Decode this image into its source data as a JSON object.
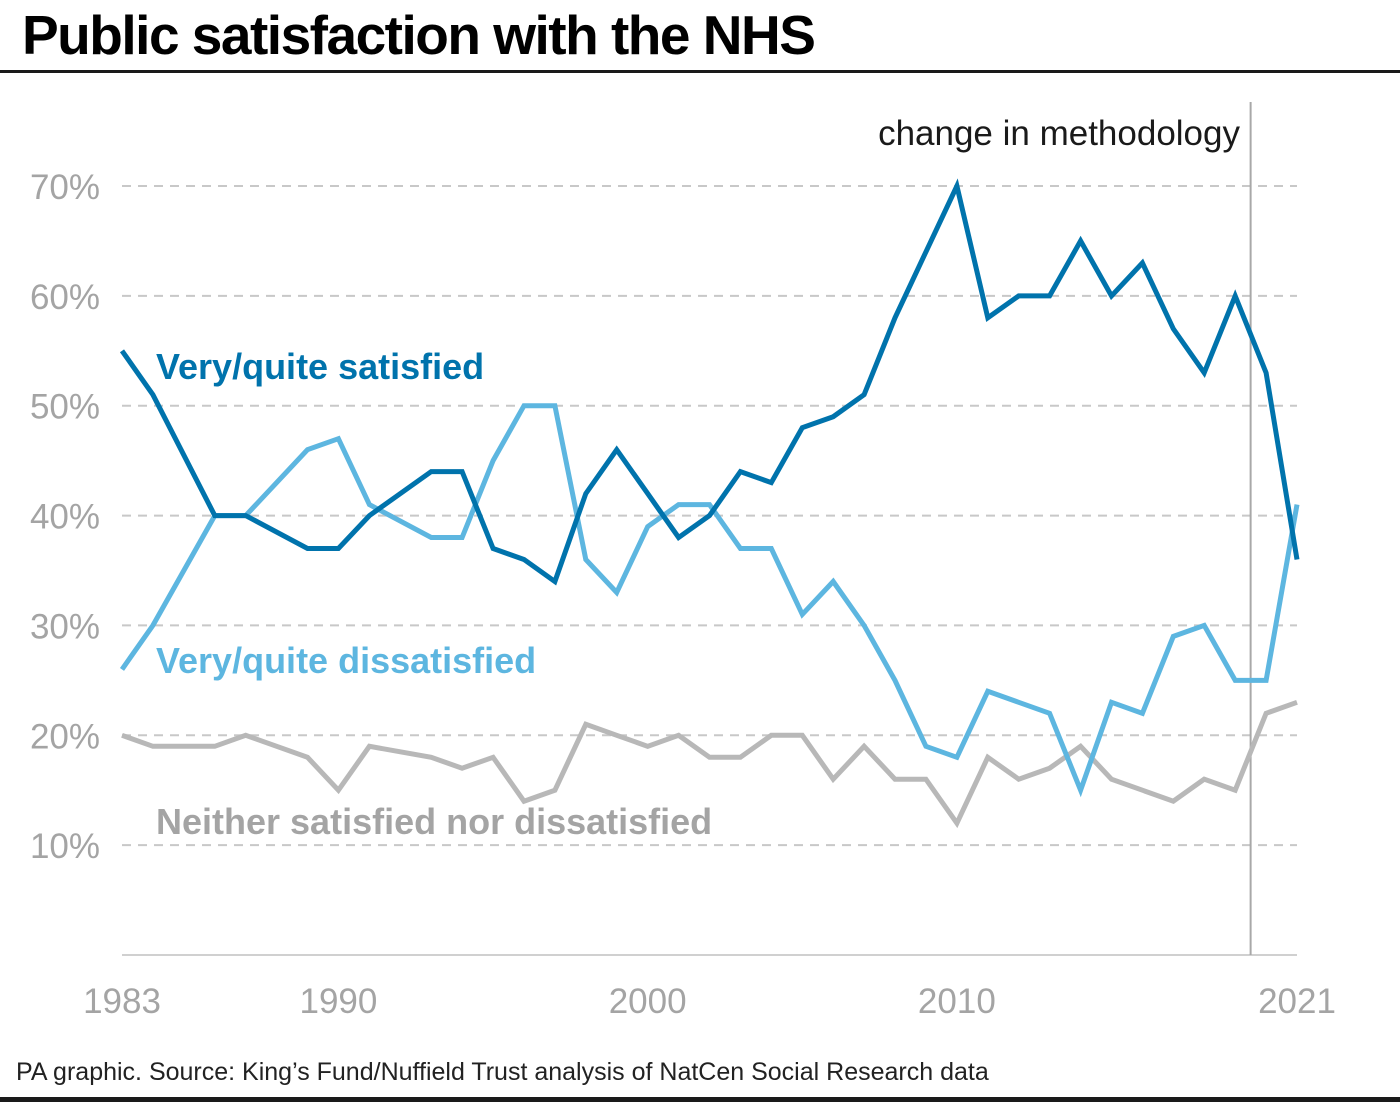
{
  "title": "Public satisfaction with the NHS",
  "source": "PA graphic. Source: King’s Fund/Nuffield Trust analysis of NatCen Social Research data",
  "chart_data": {
    "type": "line",
    "title": "Public satisfaction with the NHS",
    "xlabel": "",
    "ylabel": "",
    "xlim": [
      1983,
      2021
    ],
    "ylim": [
      0,
      70
    ],
    "grid": true,
    "x_tick_labels": [
      "1983",
      "1990",
      "2000",
      "2010",
      "2021"
    ],
    "x_ticks": [
      1983,
      1990,
      2000,
      2010,
      2021
    ],
    "y_ticks": [
      10,
      20,
      30,
      40,
      50,
      60,
      70
    ],
    "y_tick_labels": [
      "10%",
      "20%",
      "30%",
      "40%",
      "50%",
      "60%",
      "70%"
    ],
    "annotation": {
      "text": "change in methodology",
      "x": 2019.5
    },
    "series": [
      {
        "name": "Very/quite satisfied",
        "color": "#0073ac",
        "x": [
          1983,
          1984,
          1986,
          1987,
          1989,
          1990,
          1991,
          1993,
          1994,
          1995,
          1996,
          1997,
          1998,
          1999,
          2000,
          2001,
          2002,
          2003,
          2004,
          2005,
          2006,
          2007,
          2008,
          2009,
          2010,
          2011,
          2012,
          2013,
          2014,
          2015,
          2016,
          2017,
          2018,
          2019,
          2020,
          2021
        ],
        "values": [
          55,
          51,
          40,
          40,
          37,
          37,
          40,
          44,
          44,
          37,
          36,
          34,
          42,
          46,
          42,
          38,
          40,
          44,
          43,
          48,
          49,
          51,
          58,
          64,
          70,
          58,
          60,
          60,
          65,
          60,
          63,
          57,
          53,
          60,
          53,
          36
        ]
      },
      {
        "name": "Very/quite dissatisfied",
        "color": "#5db6e0",
        "x": [
          1983,
          1984,
          1986,
          1987,
          1989,
          1990,
          1991,
          1993,
          1994,
          1995,
          1996,
          1997,
          1998,
          1999,
          2000,
          2001,
          2002,
          2003,
          2004,
          2005,
          2006,
          2007,
          2008,
          2009,
          2010,
          2011,
          2012,
          2013,
          2014,
          2015,
          2016,
          2017,
          2018,
          2019,
          2020,
          2021
        ],
        "values": [
          26,
          30,
          40,
          40,
          46,
          47,
          41,
          38,
          38,
          45,
          50,
          50,
          36,
          33,
          39,
          41,
          41,
          37,
          37,
          31,
          34,
          30,
          25,
          19,
          18,
          24,
          23,
          22,
          15,
          23,
          22,
          29,
          30,
          25,
          25,
          41
        ]
      },
      {
        "name": "Neither satisfied nor dissatisfied",
        "color": "#b8b8b8",
        "x": [
          1983,
          1984,
          1986,
          1987,
          1989,
          1990,
          1991,
          1993,
          1994,
          1995,
          1996,
          1997,
          1998,
          1999,
          2000,
          2001,
          2002,
          2003,
          2004,
          2005,
          2006,
          2007,
          2008,
          2009,
          2010,
          2011,
          2012,
          2013,
          2014,
          2015,
          2016,
          2017,
          2018,
          2019,
          2020,
          2021
        ],
        "values": [
          20,
          19,
          19,
          20,
          18,
          15,
          19,
          18,
          17,
          18,
          14,
          15,
          21,
          20,
          19,
          20,
          18,
          18,
          20,
          20,
          16,
          19,
          16,
          16,
          12,
          18,
          16,
          17,
          19,
          16,
          15,
          14,
          16,
          15,
          22,
          23
        ]
      }
    ]
  }
}
